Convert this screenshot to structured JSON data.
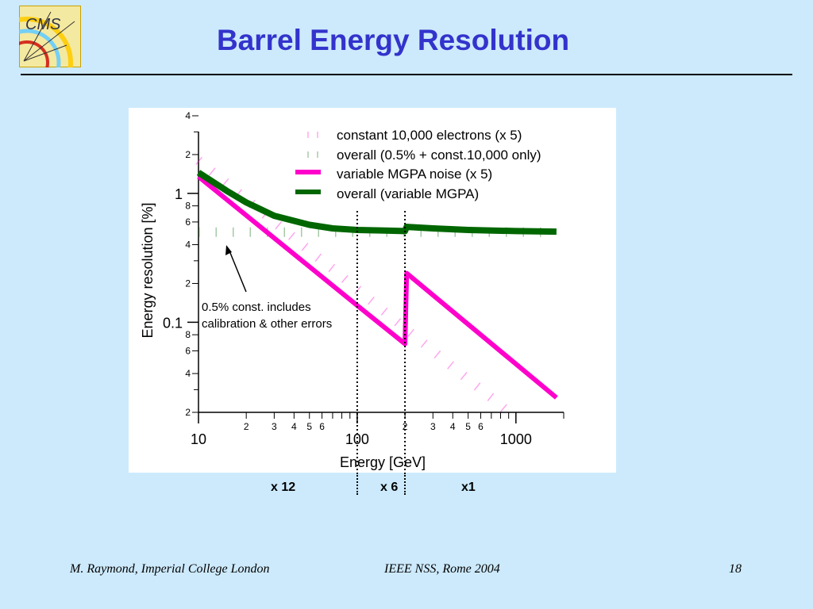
{
  "slide": {
    "title": "Barrel Energy Resolution",
    "logo_text": "CMS",
    "regions": [
      "x 12",
      "x 6",
      "x1"
    ],
    "footer": {
      "left": "M. Raymond, Imperial College London",
      "center": "IEEE NSS, Rome 2004",
      "page": "18"
    },
    "colors": {
      "title": "#3333cc",
      "background": "#cdeafc",
      "magenta": "#ff00cc",
      "green": "#006600"
    }
  },
  "chart_data": {
    "type": "line",
    "xlabel": "Energy [GeV]",
    "ylabel": "Energy resolution [%]",
    "xscale": "log",
    "yscale": "log",
    "xlim": [
      10,
      2000
    ],
    "ylim": [
      0.02,
      4
    ],
    "x_major_labels": [
      "10",
      "100",
      "1000"
    ],
    "x_minor_labels": [
      "2",
      "3",
      "4",
      "5",
      "6",
      "2",
      "3",
      "4",
      "5",
      "6"
    ],
    "y_major_labels": [
      "1",
      "0.1"
    ],
    "y_minor_labels": [
      "4",
      "2",
      "8",
      "6",
      "4",
      "2",
      "8",
      "6",
      "4",
      "2"
    ],
    "legend_position": "top-right",
    "series": [
      {
        "name": "constant 10,000 electrons (x 5)",
        "style": "dashed",
        "color": "#ff00cc",
        "x": [
          10,
          15,
          20,
          30,
          50,
          70,
          100,
          150,
          200,
          300,
          500,
          700,
          1000
        ],
        "y": [
          1.8,
          1.2,
          0.9,
          0.6,
          0.36,
          0.26,
          0.18,
          0.12,
          0.09,
          0.06,
          0.036,
          0.026,
          0.018
        ]
      },
      {
        "name": "overall (0.5% + const.10,000 only)",
        "style": "dashed",
        "color": "#006600",
        "x": [
          10,
          15,
          20,
          30,
          50,
          70,
          100,
          150,
          200,
          300,
          500,
          700,
          1000,
          1500
        ],
        "y": [
          0.5,
          0.5,
          0.5,
          0.5,
          0.5,
          0.5,
          0.5,
          0.5,
          0.5,
          0.5,
          0.5,
          0.5,
          0.5,
          0.5
        ]
      },
      {
        "name": "variable MGPA noise (x 5)",
        "style": "solid",
        "color": "#ff00cc",
        "x": [
          10,
          100,
          200,
          205,
          1800
        ],
        "y": [
          1.35,
          0.135,
          0.068,
          0.24,
          0.026
        ]
      },
      {
        "name": "overall (variable MGPA)",
        "style": "solid",
        "color": "#006600",
        "x": [
          10,
          15,
          20,
          30,
          50,
          70,
          100,
          150,
          200,
          205,
          300,
          500,
          1000,
          1800
        ],
        "y": [
          1.45,
          1.05,
          0.85,
          0.67,
          0.57,
          0.535,
          0.52,
          0.515,
          0.51,
          0.55,
          0.535,
          0.52,
          0.51,
          0.505
        ]
      }
    ],
    "vertical_lines": [
      100,
      200
    ],
    "annotations": [
      {
        "text": [
          "0.5% const. includes",
          "calibration & other errors"
        ],
        "points_to": [
          15,
          0.5
        ]
      }
    ]
  }
}
